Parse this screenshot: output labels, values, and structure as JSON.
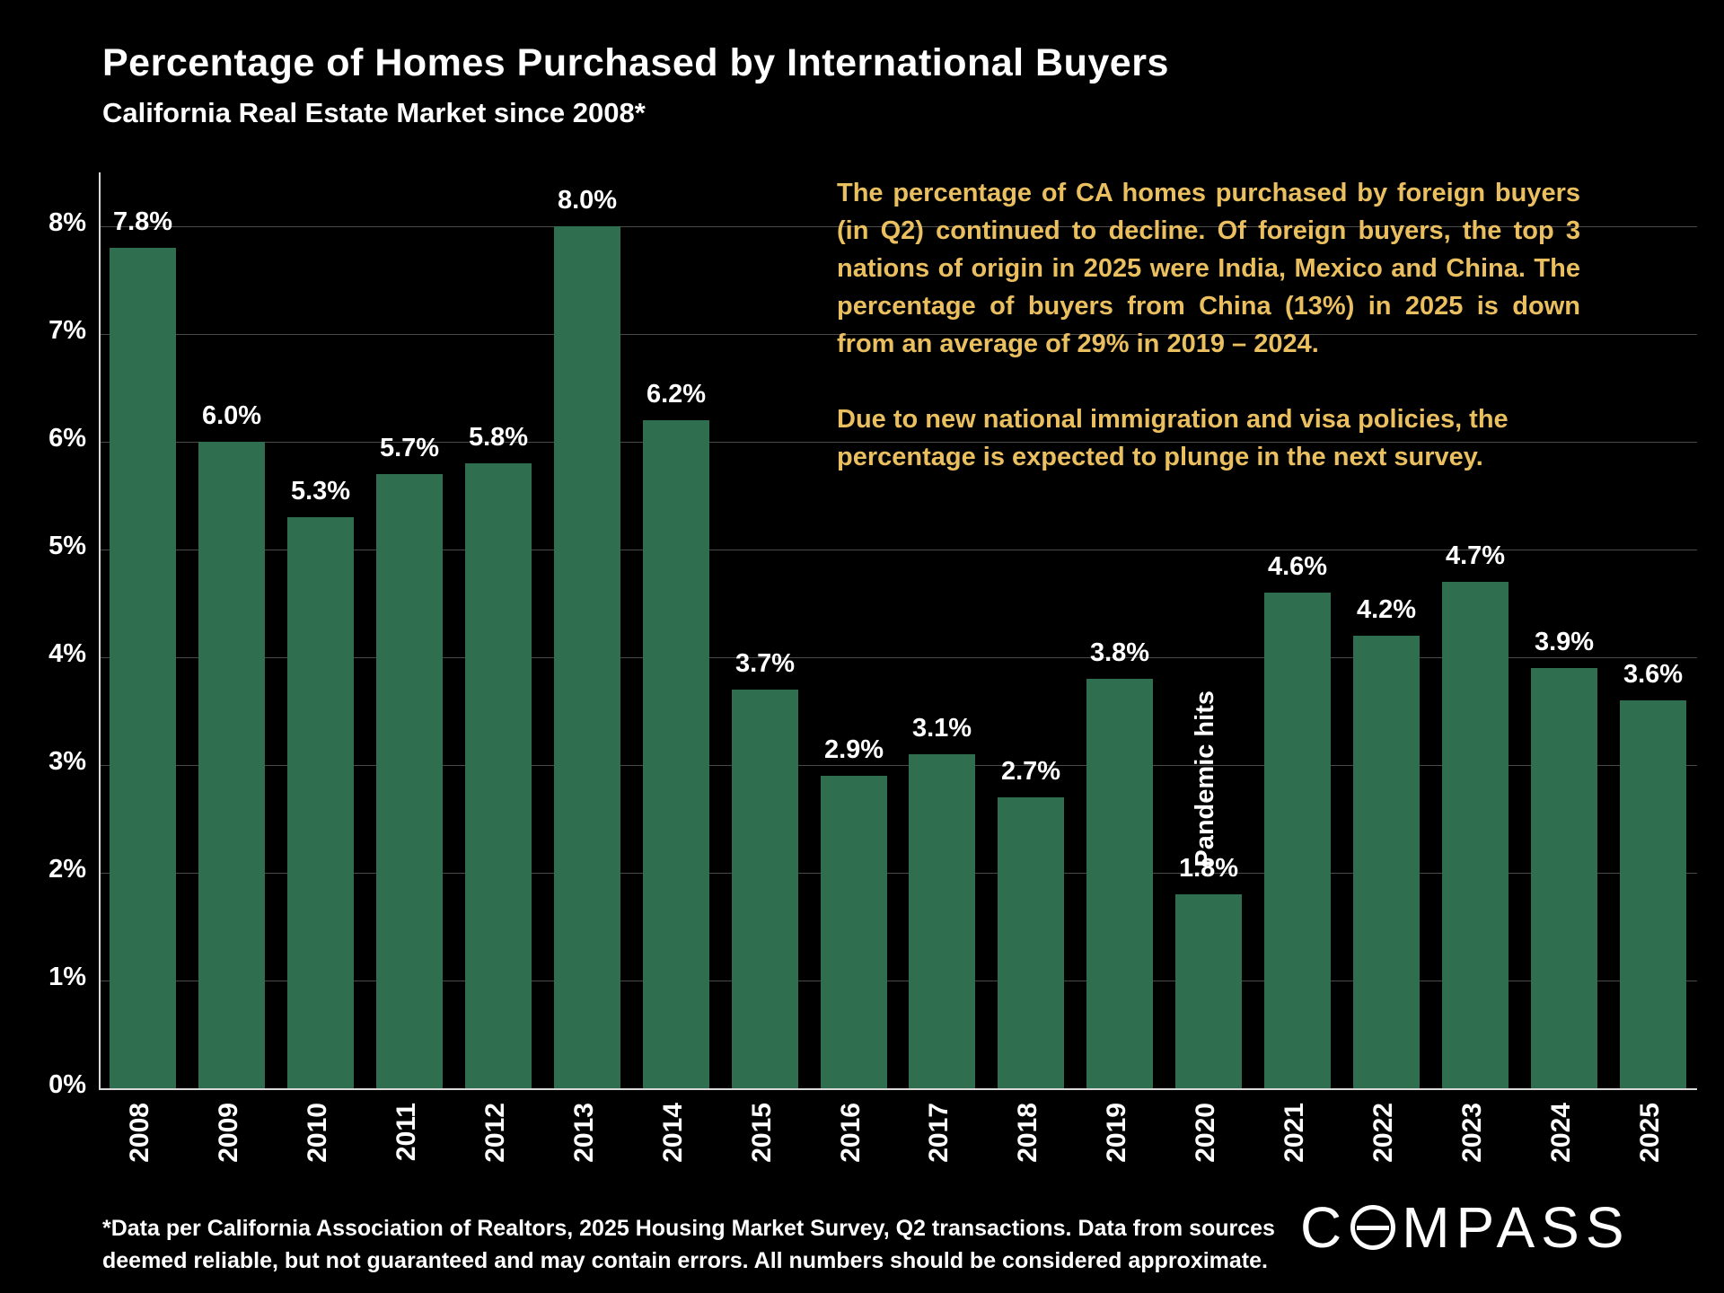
{
  "title": "Percentage of Homes Purchased by International Buyers",
  "subtitle": "California Real Estate Market since 2008*",
  "annotation": {
    "para1": "The percentage of CA homes purchased by foreign buyers (in Q2) continued to decline. Of foreign buyers, the top 3 nations of origin in 2025 were India, Mexico and China. The percentage of buyers from China (13%) in 2025 is down from an average of 29% in 2019 – 2024.",
    "para2": "Due to new national immigration and visa policies, the percentage is expected to plunge in the next survey.",
    "color": "#eabf5f"
  },
  "footnote": "*Data per California Association of Realtors, 2025 Housing Market Survey, Q2 transactions. Data from sources deemed reliable, but not guaranteed and may contain errors. All numbers should be considered approximate.",
  "logo": {
    "left": "C",
    "right": "MPASS"
  },
  "chart_data": {
    "type": "bar",
    "title": "Percentage of Homes Purchased by International Buyers",
    "subtitle": "California Real Estate Market since 2008*",
    "categories": [
      "2008",
      "2009",
      "2010",
      "2011",
      "2012",
      "2013",
      "2014",
      "2015",
      "2016",
      "2017",
      "2018",
      "2019",
      "2020",
      "2021",
      "2022",
      "2023",
      "2024",
      "2025"
    ],
    "values": [
      7.8,
      6.0,
      5.3,
      5.7,
      5.8,
      8.0,
      6.2,
      3.7,
      2.9,
      3.1,
      2.7,
      3.8,
      1.8,
      4.6,
      4.2,
      4.7,
      3.9,
      3.6
    ],
    "labels": [
      "7.8%",
      "6.0%",
      "5.3%",
      "5.7%",
      "5.8%",
      "8.0%",
      "6.2%",
      "3.7%",
      "2.9%",
      "3.1%",
      "2.7%",
      "3.8%",
      "1.8%",
      "4.6%",
      "4.2%",
      "4.7%",
      "3.9%",
      "3.6%"
    ],
    "yticks": [
      "0%",
      "1%",
      "2%",
      "3%",
      "4%",
      "5%",
      "6%",
      "7%",
      "8%"
    ],
    "ylim": [
      0,
      8.5
    ],
    "grid": true,
    "legend": "none",
    "bar_color": "#2f6f4f",
    "background_color": "#000000",
    "special_annotation": {
      "category": "2020",
      "text": "Pandemic hits"
    }
  }
}
